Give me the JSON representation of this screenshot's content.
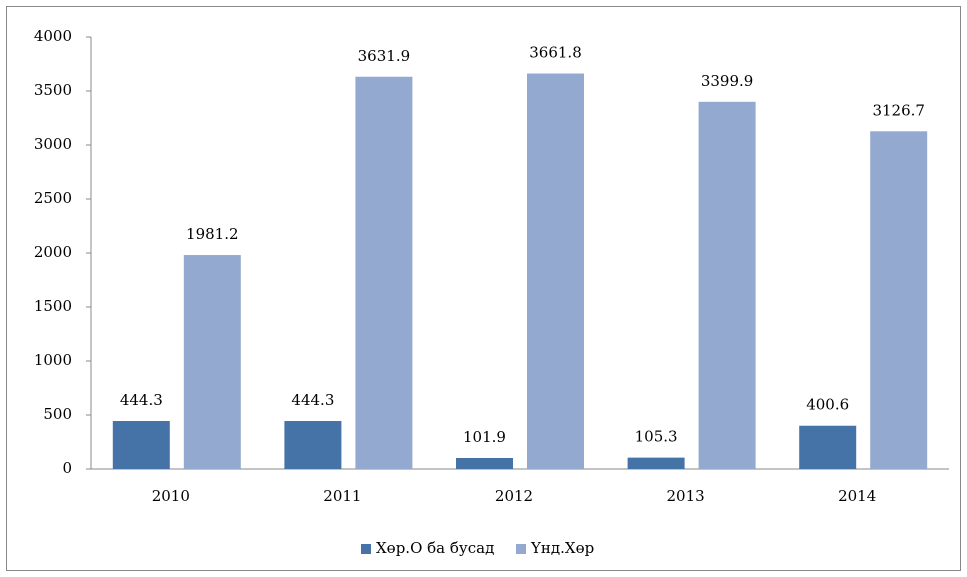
{
  "chart_data": {
    "type": "bar",
    "categories": [
      "2010",
      "2011",
      "2012",
      "2013",
      "2014"
    ],
    "series": [
      {
        "name": "Хөр.О ба бусад",
        "color": "#4572a7",
        "values": [
          444.3,
          444.3,
          101.9,
          105.3,
          400.6
        ]
      },
      {
        "name": "Үнд.Хөр",
        "color": "#93a9cf",
        "values": [
          1981.2,
          3631.9,
          3661.8,
          3399.9,
          3126.7
        ]
      }
    ],
    "ylim": [
      0,
      4000
    ],
    "yticks": [
      0,
      500,
      1000,
      1500,
      2000,
      2500,
      3000,
      3500,
      4000
    ],
    "grid": false,
    "legend": "bottom"
  }
}
